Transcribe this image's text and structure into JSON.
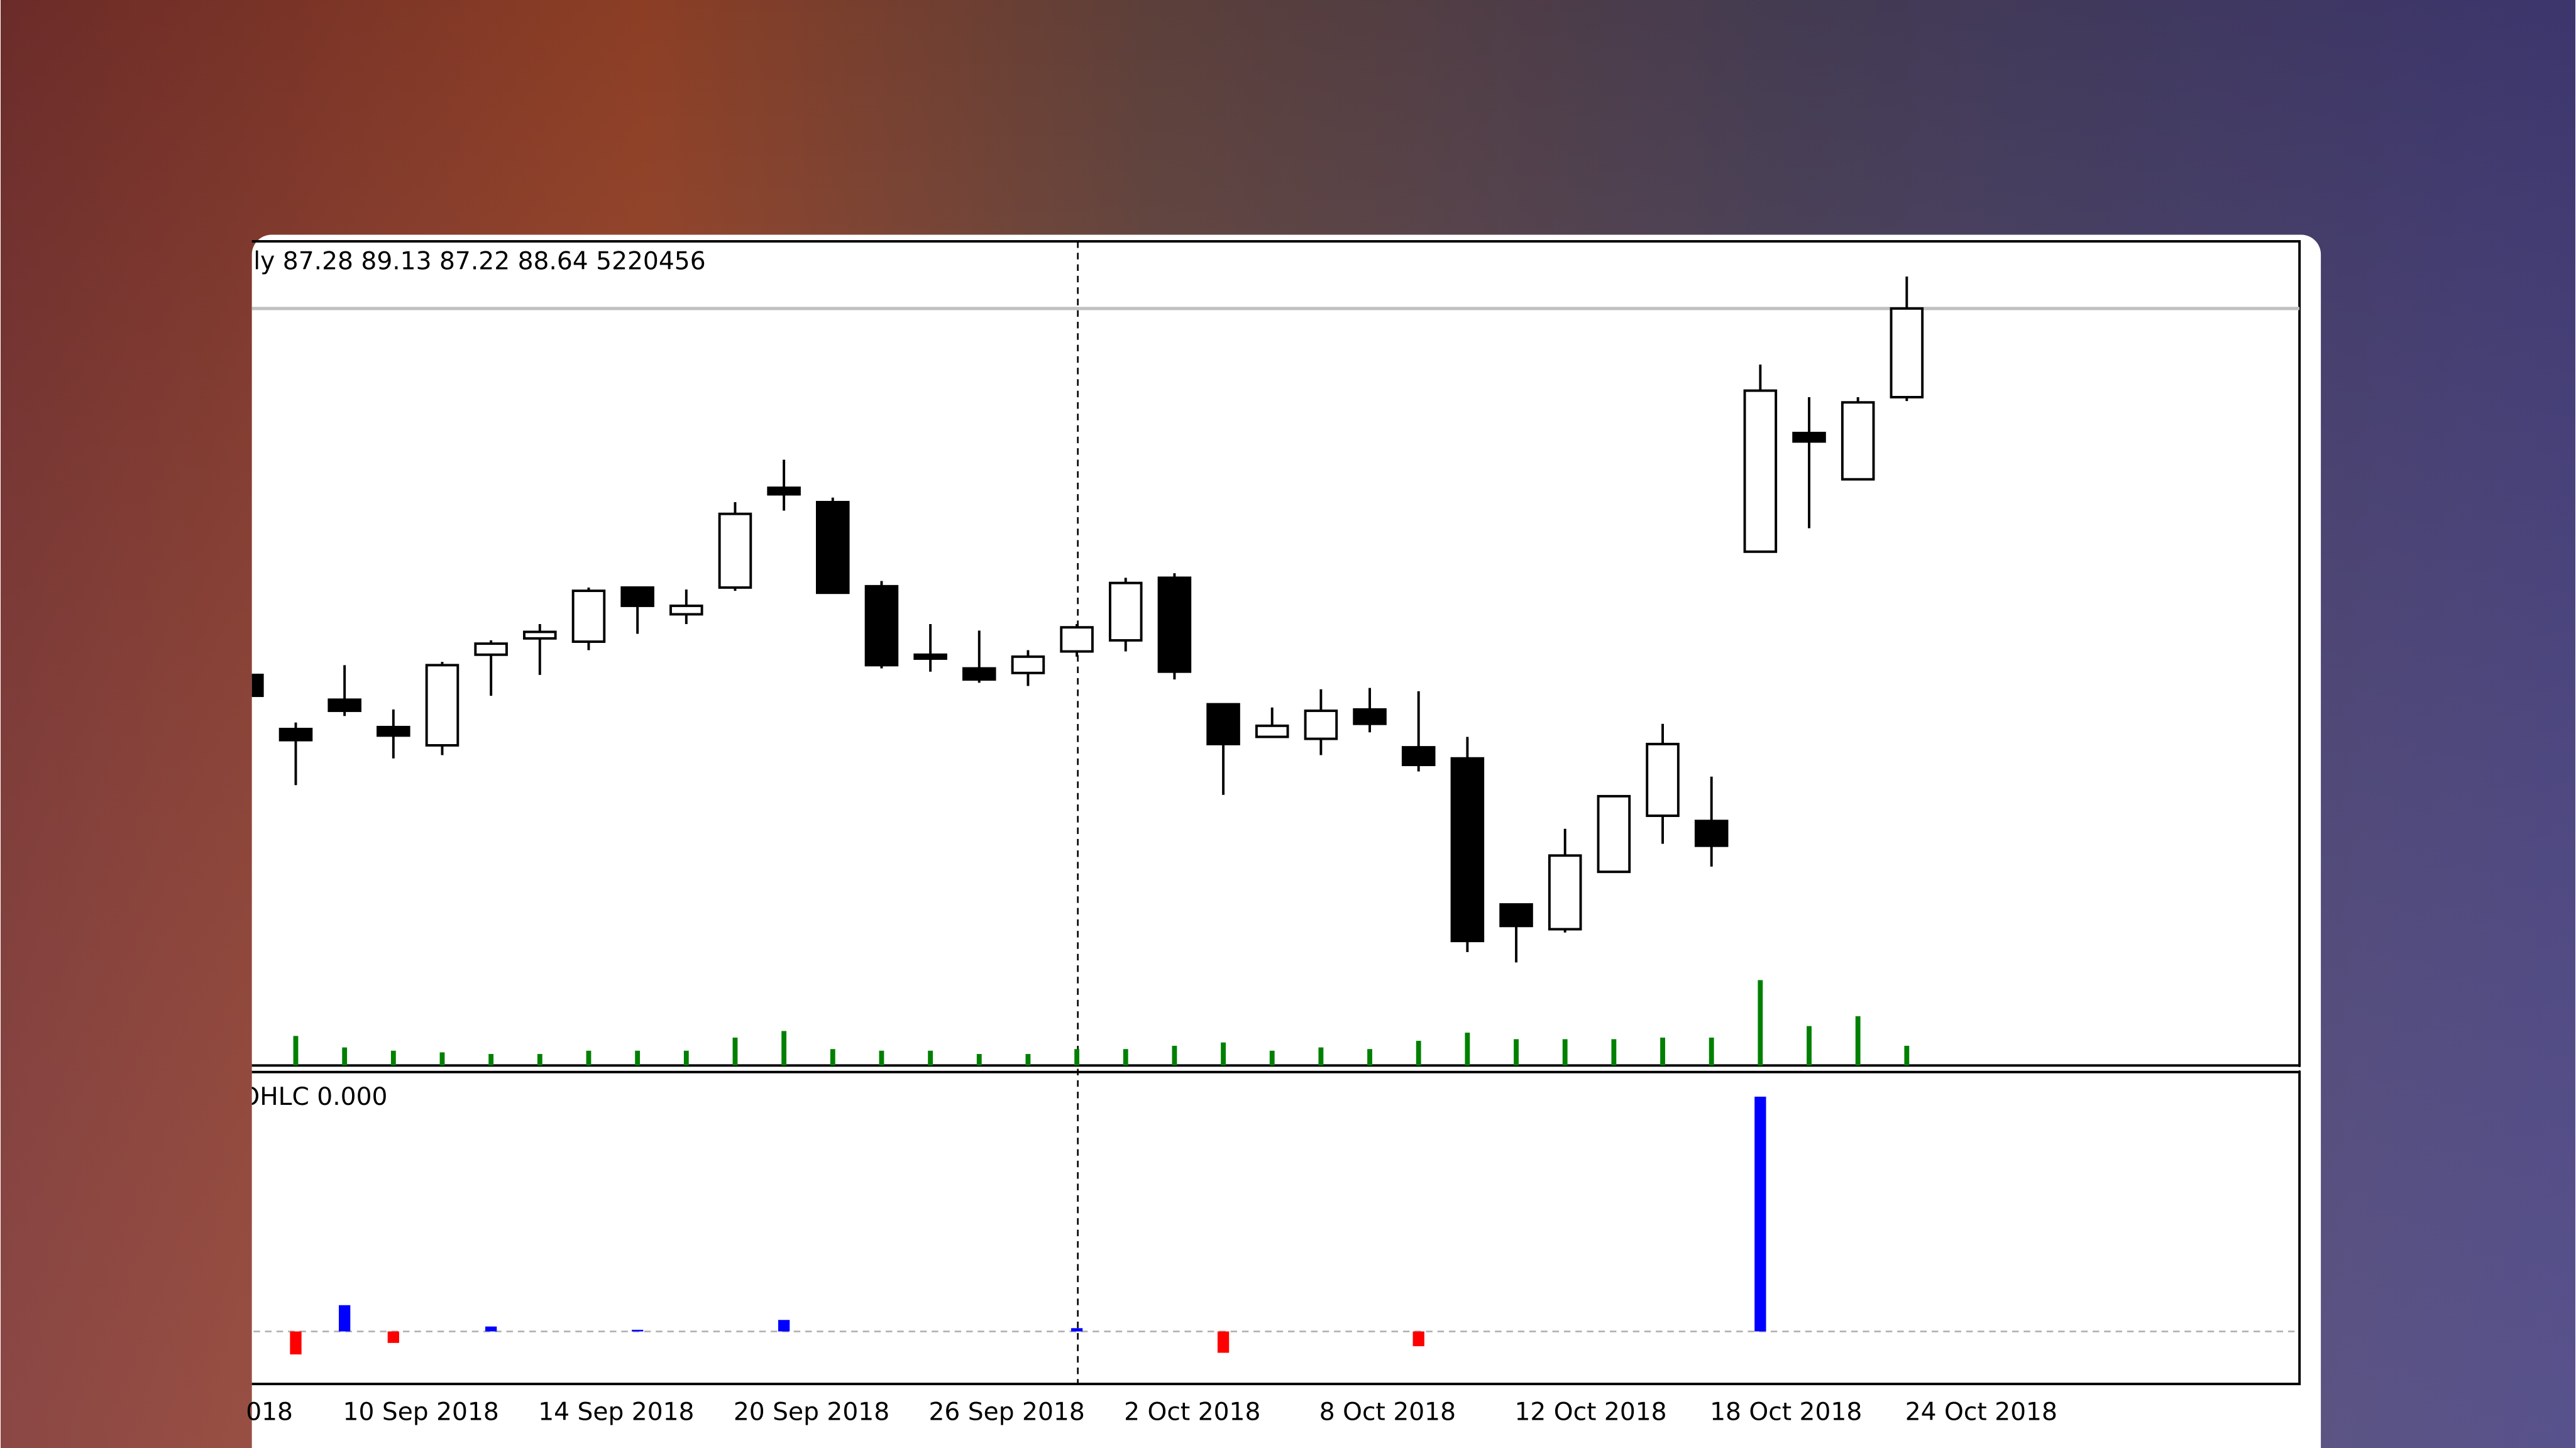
{
  "chart_data": {
    "type": "candlestick",
    "ohlc_label": "ly  87.28 89.13 87.22 88.64  5220456",
    "indicator_label": "OHLC 0.000",
    "x_labels": [
      "018",
      "10 Sep 2018",
      "14 Sep 2018",
      "20 Sep 2018",
      "26 Sep 2018",
      "2 Oct 2018",
      "8 Oct 2018",
      "12 Oct 2018",
      "18 Oct 2018",
      "24 Oct 2018"
    ],
    "open": [
      83.02,
      82.19,
      82.64,
      82.22,
      81.94,
      83.33,
      83.58,
      83.53,
      84.36,
      83.95,
      84.36,
      85.89,
      85.67,
      84.38,
      83.33,
      83.12,
      83.05,
      83.38,
      83.55,
      84.51,
      82.57,
      82.07,
      82.04,
      82.49,
      81.91,
      81.74,
      79.5,
      79.12,
      80.0,
      80.86,
      80.78,
      84.91,
      86.73,
      86.02,
      87.28
    ],
    "high": [
      83.1,
      82.29,
      83.17,
      82.49,
      83.22,
      83.55,
      83.8,
      84.36,
      84.36,
      84.33,
      85.67,
      86.32,
      85.74,
      84.46,
      83.8,
      83.7,
      83.4,
      83.8,
      84.51,
      84.58,
      82.57,
      82.52,
      82.8,
      82.82,
      82.77,
      82.07,
      79.5,
      80.66,
      81.16,
      82.27,
      81.46,
      87.78,
      87.28,
      87.28,
      89.13
    ],
    "low": [
      82.64,
      81.33,
      82.39,
      81.74,
      81.79,
      82.7,
      83.02,
      83.4,
      83.65,
      83.8,
      84.31,
      85.54,
      84.28,
      83.12,
      83.07,
      82.9,
      82.85,
      83.3,
      83.38,
      82.95,
      81.18,
      82.07,
      81.79,
      82.14,
      81.54,
      78.77,
      78.61,
      79.07,
      80.0,
      80.43,
      80.08,
      84.91,
      85.27,
      86.02,
      87.22
    ],
    "close": [
      82.7,
      82.02,
      82.47,
      82.09,
      83.17,
      83.5,
      83.68,
      84.31,
      84.08,
      84.08,
      85.49,
      85.79,
      84.28,
      83.17,
      83.27,
      82.95,
      83.3,
      83.75,
      84.43,
      83.07,
      81.96,
      82.24,
      82.47,
      82.27,
      81.64,
      78.94,
      79.17,
      80.25,
      81.16,
      81.96,
      80.4,
      87.38,
      86.6,
      87.2,
      88.64
    ],
    "volume": [
      null,
      7830000,
      4785000,
      3915000,
      3480000,
      3045000,
      3045000,
      3915000,
      3915000,
      3915000,
      7395000,
      9135000,
      4350000,
      3915000,
      3915000,
      3045000,
      3045000,
      4350000,
      4350000,
      5220000,
      6090000,
      3915000,
      4785000,
      4350000,
      6525000,
      8700000,
      6960000,
      6960000,
      6960000,
      7395000,
      7395000,
      22620000,
      10440000,
      13050000,
      5220456
    ],
    "indicator": [
      0,
      -0.14,
      0.16,
      -0.07,
      0,
      0.03,
      0,
      0,
      0.01,
      0,
      0,
      0.07,
      0,
      0,
      0,
      0,
      0,
      0.02,
      0,
      0,
      -0.13,
      0,
      0,
      0,
      -0.09,
      0,
      0,
      0,
      0,
      0,
      0,
      1.43,
      0,
      0,
      0
    ],
    "ylim": [
      77.03,
      89.67
    ],
    "volume_lim": [
      0,
      218370000
    ],
    "indicator_lim": [
      -0.32,
      1.58
    ],
    "up_color": "#ffffff",
    "down_color": "#000000",
    "volume_color": "#008000",
    "positive_color": "#0000ff",
    "negative_color": "#ff0000"
  }
}
